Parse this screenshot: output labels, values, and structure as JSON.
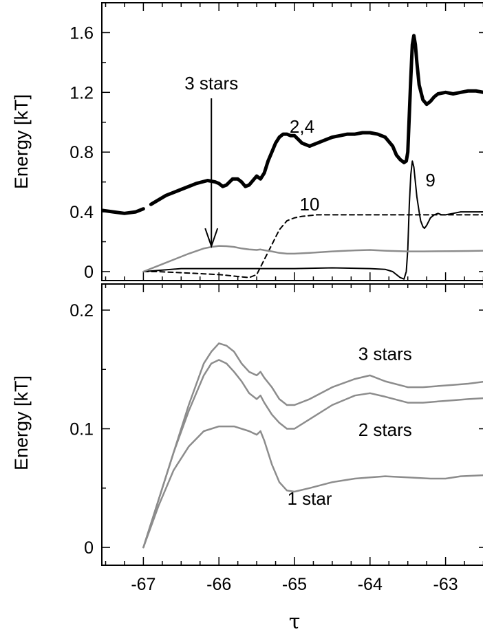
{
  "chart_data": [
    {
      "type": "line",
      "panel": "top",
      "xlabel": "τ",
      "ylabel": "Energy [kT]",
      "xlim": [
        -67.55,
        -62.45
      ],
      "ylim": [
        -0.06,
        1.8
      ],
      "yticks": [
        0,
        0.4,
        0.8,
        1.2,
        1.6
      ],
      "ytick_labels": [
        "0",
        "0.4",
        "0.8",
        "1.2",
        "1.6"
      ],
      "xticks": [
        -67,
        -66,
        -65,
        -64,
        -63
      ],
      "grid": false,
      "colors": {
        "black": "#000000",
        "gray": "#8c8c8c"
      },
      "series": [
        {
          "label_ref": "2,4",
          "style": "thick",
          "x": [
            -67.55,
            -67.4,
            -67.25,
            -67.1,
            -67.0,
            -66.9,
            -66.7,
            -66.5,
            -66.3,
            -66.15,
            -66.05,
            -66.0,
            -65.95,
            -65.9,
            -65.82,
            -65.75,
            -65.7,
            -65.65,
            -65.6,
            -65.55,
            -65.5,
            -65.45,
            -65.4,
            -65.35,
            -65.3,
            -65.25,
            -65.2,
            -65.15,
            -65.1,
            -65.05,
            -65.0,
            -64.9,
            -64.8,
            -64.7,
            -64.6,
            -64.5,
            -64.4,
            -64.3,
            -64.2,
            -64.1,
            -64.0,
            -63.9,
            -63.8,
            -63.7,
            -63.65,
            -63.6,
            -63.55,
            -63.52,
            -63.5,
            -63.48,
            -63.46,
            -63.44,
            -63.42,
            -63.4,
            -63.38,
            -63.35,
            -63.3,
            -63.25,
            -63.2,
            -63.15,
            -63.1,
            -63.0,
            -62.9,
            -62.8,
            -62.7,
            -62.6,
            -62.5,
            -62.45
          ],
          "y": [
            0.41,
            0.4,
            0.39,
            0.4,
            0.42,
            0.45,
            0.51,
            0.55,
            0.59,
            0.61,
            0.6,
            0.59,
            0.57,
            0.58,
            0.62,
            0.62,
            0.6,
            0.57,
            0.58,
            0.61,
            0.64,
            0.62,
            0.66,
            0.74,
            0.8,
            0.86,
            0.9,
            0.92,
            0.92,
            0.91,
            0.91,
            0.86,
            0.84,
            0.86,
            0.88,
            0.9,
            0.91,
            0.92,
            0.92,
            0.93,
            0.93,
            0.92,
            0.9,
            0.84,
            0.78,
            0.75,
            0.73,
            0.74,
            0.8,
            1.05,
            1.3,
            1.52,
            1.58,
            1.52,
            1.4,
            1.25,
            1.15,
            1.12,
            1.14,
            1.17,
            1.19,
            1.2,
            1.19,
            1.2,
            1.21,
            1.21,
            1.2,
            1.21
          ],
          "gap_x": [
            -67.0,
            -66.9
          ]
        },
        {
          "label_ref": "10",
          "style": "dashed",
          "x": [
            -67.0,
            -66.8,
            -66.6,
            -66.4,
            -66.2,
            -66.0,
            -65.8,
            -65.6,
            -65.5,
            -65.45,
            -65.4,
            -65.35,
            -65.3,
            -65.25,
            -65.2,
            -65.15,
            -65.1,
            -65.05,
            -65.0,
            -64.9,
            -64.8,
            -64.7,
            -64.5,
            -64.0,
            -63.5,
            -63.0,
            -62.45
          ],
          "y": [
            0.0,
            0.0,
            -0.005,
            -0.01,
            -0.015,
            -0.02,
            -0.03,
            -0.04,
            -0.02,
            0.03,
            0.08,
            0.13,
            0.18,
            0.23,
            0.28,
            0.31,
            0.34,
            0.35,
            0.36,
            0.37,
            0.375,
            0.38,
            0.38,
            0.38,
            0.38,
            0.38,
            0.38
          ]
        },
        {
          "label_ref": "9",
          "style": "thin",
          "x": [
            -67.0,
            -66.5,
            -66.0,
            -65.5,
            -65.0,
            -64.5,
            -64.0,
            -63.8,
            -63.7,
            -63.6,
            -63.55,
            -63.52,
            -63.5,
            -63.48,
            -63.46,
            -63.44,
            -63.42,
            -63.4,
            -63.38,
            -63.35,
            -63.33,
            -63.3,
            -63.28,
            -63.25,
            -63.22,
            -63.2,
            -63.15,
            -63.1,
            -63.05,
            -63.0,
            -62.9,
            -62.8,
            -62.7,
            -62.6,
            -62.45
          ],
          "y": [
            0.0,
            0.02,
            0.02,
            0.02,
            0.02,
            0.025,
            0.02,
            0.015,
            0.0,
            -0.04,
            -0.05,
            0.0,
            0.15,
            0.45,
            0.65,
            0.74,
            0.7,
            0.6,
            0.5,
            0.4,
            0.34,
            0.3,
            0.29,
            0.31,
            0.34,
            0.36,
            0.38,
            0.39,
            0.38,
            0.38,
            0.39,
            0.4,
            0.4,
            0.4,
            0.4
          ]
        },
        {
          "label_ref": "3 stars",
          "style": "gray",
          "x": [
            -67.0,
            -66.8,
            -66.6,
            -66.4,
            -66.2,
            -66.1,
            -66.0,
            -65.9,
            -65.8,
            -65.7,
            -65.6,
            -65.5,
            -65.45,
            -65.4,
            -65.3,
            -65.2,
            -65.1,
            -65.0,
            -64.8,
            -64.5,
            -64.2,
            -64.0,
            -63.8,
            -63.5,
            -63.3,
            -63.1,
            -62.9,
            -62.7,
            -62.45
          ],
          "y": [
            0.0,
            0.04,
            0.08,
            0.12,
            0.155,
            0.165,
            0.172,
            0.17,
            0.165,
            0.155,
            0.148,
            0.145,
            0.148,
            0.143,
            0.135,
            0.125,
            0.12,
            0.12,
            0.125,
            0.135,
            0.142,
            0.145,
            0.14,
            0.135,
            0.135,
            0.136,
            0.137,
            0.138,
            0.14
          ]
        }
      ],
      "annotations": [
        {
          "text": "3 stars",
          "x": -66.1,
          "y": 1.22
        },
        {
          "text": "2,4",
          "x": -64.9,
          "y": 0.93
        },
        {
          "text": "10",
          "x": -64.8,
          "y": 0.41
        },
        {
          "text": "9",
          "x": -63.2,
          "y": 0.57
        }
      ],
      "arrow": {
        "from": [
          -66.1,
          1.16
        ],
        "to": [
          -66.1,
          0.17
        ]
      }
    },
    {
      "type": "line",
      "panel": "bottom",
      "xlabel": "τ",
      "ylabel": "Energy [kT]",
      "xlim": [
        -67.55,
        -62.45
      ],
      "ylim": [
        -0.015,
        0.222
      ],
      "yticks": [
        0,
        0.1,
        0.2
      ],
      "ytick_labels": [
        "0",
        "0.1",
        "0.2"
      ],
      "xticks": [
        -67,
        -66,
        -65,
        -64,
        -63
      ],
      "xtick_labels": [
        "-67",
        "-66",
        "-65",
        "-64",
        "-63"
      ],
      "grid": false,
      "series": [
        {
          "label_ref": "3 stars",
          "x": [
            -67.0,
            -66.8,
            -66.6,
            -66.4,
            -66.2,
            -66.1,
            -66.0,
            -65.9,
            -65.8,
            -65.7,
            -65.6,
            -65.5,
            -65.45,
            -65.4,
            -65.3,
            -65.2,
            -65.1,
            -65.0,
            -64.8,
            -64.5,
            -64.2,
            -64.0,
            -63.8,
            -63.5,
            -63.3,
            -63.1,
            -62.9,
            -62.7,
            -62.45
          ],
          "y": [
            0.0,
            0.04,
            0.08,
            0.12,
            0.155,
            0.165,
            0.172,
            0.17,
            0.165,
            0.155,
            0.148,
            0.145,
            0.148,
            0.143,
            0.135,
            0.125,
            0.12,
            0.12,
            0.125,
            0.135,
            0.142,
            0.145,
            0.14,
            0.135,
            0.135,
            0.136,
            0.137,
            0.138,
            0.14
          ]
        },
        {
          "label_ref": "2 stars",
          "x": [
            -67.0,
            -66.8,
            -66.6,
            -66.4,
            -66.2,
            -66.1,
            -66.0,
            -65.9,
            -65.8,
            -65.7,
            -65.6,
            -65.5,
            -65.45,
            -65.4,
            -65.3,
            -65.2,
            -65.1,
            -65.0,
            -64.8,
            -64.5,
            -64.2,
            -64.0,
            -63.8,
            -63.5,
            -63.3,
            -63.1,
            -62.9,
            -62.7,
            -62.45
          ],
          "y": [
            0.0,
            0.04,
            0.08,
            0.115,
            0.145,
            0.155,
            0.158,
            0.155,
            0.148,
            0.14,
            0.13,
            0.125,
            0.128,
            0.122,
            0.112,
            0.105,
            0.1,
            0.1,
            0.108,
            0.12,
            0.128,
            0.13,
            0.127,
            0.122,
            0.122,
            0.123,
            0.124,
            0.125,
            0.126
          ]
        },
        {
          "label_ref": "1 star",
          "x": [
            -67.0,
            -66.8,
            -66.6,
            -66.4,
            -66.2,
            -66.0,
            -65.8,
            -65.6,
            -65.5,
            -65.45,
            -65.4,
            -65.3,
            -65.2,
            -65.1,
            -65.0,
            -64.8,
            -64.5,
            -64.2,
            -64.0,
            -63.8,
            -63.5,
            -63.2,
            -63.0,
            -62.8,
            -62.45
          ],
          "y": [
            0.0,
            0.035,
            0.065,
            0.085,
            0.098,
            0.102,
            0.102,
            0.098,
            0.095,
            0.098,
            0.09,
            0.07,
            0.055,
            0.048,
            0.047,
            0.05,
            0.055,
            0.058,
            0.059,
            0.06,
            0.059,
            0.058,
            0.058,
            0.06,
            0.061
          ]
        }
      ],
      "annotations": [
        {
          "text": "3 stars",
          "x": -63.8,
          "y": 0.158
        },
        {
          "text": "2 stars",
          "x": -63.8,
          "y": 0.094
        },
        {
          "text": "1 star",
          "x": -64.8,
          "y": 0.036
        }
      ]
    }
  ],
  "color_black": "#000000",
  "color_gray": "#8c8c8c"
}
